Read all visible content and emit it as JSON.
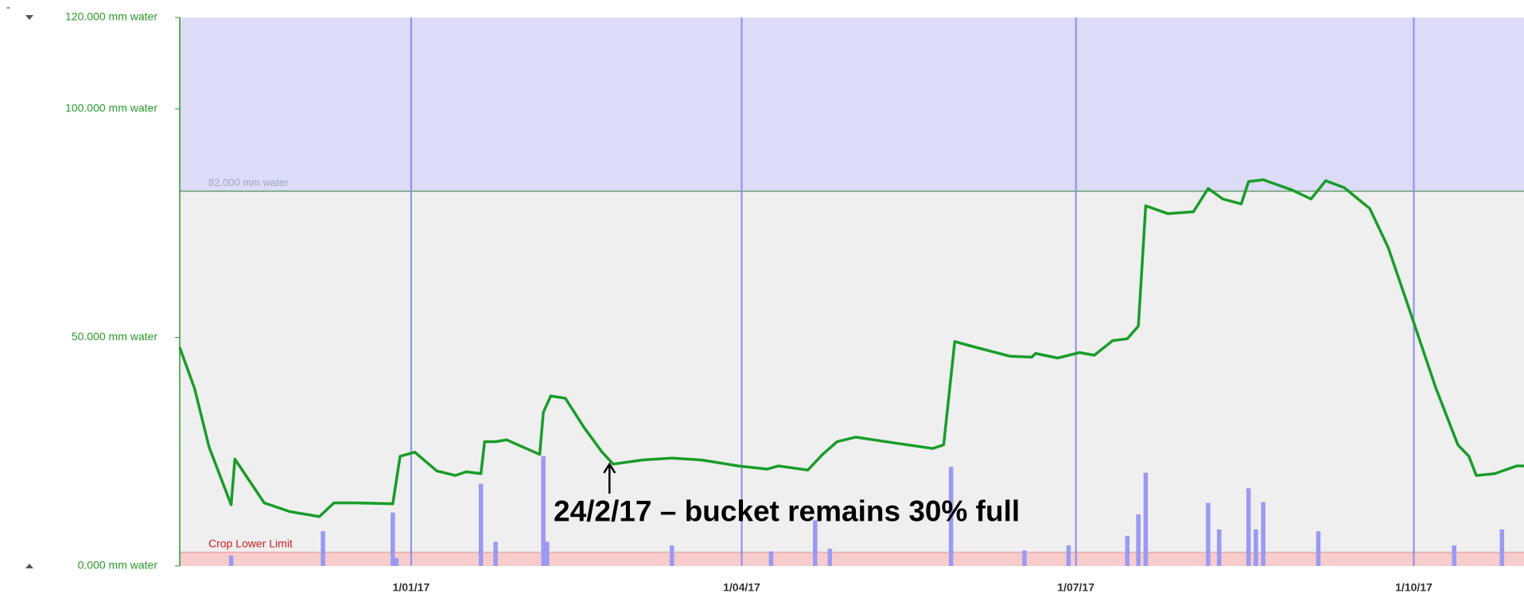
{
  "chart_data": {
    "type": "line",
    "x_type": "date",
    "xlim": [
      "2016-10-30",
      "2017-10-31"
    ],
    "xticks": [
      {
        "value": "2017-01-01",
        "label": "1/01/17"
      },
      {
        "value": "2017-04-01",
        "label": "1/04/17"
      },
      {
        "value": "2017-07-01",
        "label": "1/07/17"
      },
      {
        "value": "2017-10-01",
        "label": "1/10/17"
      }
    ],
    "ylim": [
      0,
      120
    ],
    "yticks": [
      {
        "value": 0,
        "label": "0.000 mm water"
      },
      {
        "value": 50,
        "label": "50.000 mm water"
      },
      {
        "value": 100,
        "label": "100.000 mm water"
      },
      {
        "value": 120,
        "label": "120.000 mm water"
      }
    ],
    "full_point": {
      "value": 82,
      "label": "82.000 mm water"
    },
    "lower_limit": {
      "value": 3,
      "label": "Crop Lower Limit"
    },
    "annotation": {
      "text": "24/2/17 – bucket remains 30% full",
      "x": "2017-02-24",
      "y": 22.8
    },
    "series": [
      {
        "type": "bar",
        "color": "#9a9af2",
        "x": [
          "2016-11-13",
          "2016-12-08",
          "2016-12-27",
          "2016-12-28",
          "2017-01-20",
          "2017-01-24",
          "2017-02-06",
          "2017-02-07",
          "2017-03-13",
          "2017-04-09",
          "2017-04-21",
          "2017-04-25",
          "2017-05-28",
          "2017-06-17",
          "2017-06-29",
          "2017-07-15",
          "2017-07-18",
          "2017-07-20",
          "2017-08-06",
          "2017-08-09",
          "2017-08-17",
          "2017-08-19",
          "2017-08-21",
          "2017-09-05",
          "2017-10-12",
          "2017-10-25"
        ],
        "values": [
          2.3,
          7.6,
          11.7,
          1.7,
          18,
          5.3,
          24,
          5.3,
          4.5,
          3.2,
          10,
          3.8,
          21.7,
          3.4,
          4.5,
          6.6,
          11.3,
          20.4,
          13.8,
          8,
          17,
          8,
          14,
          7.6,
          4.5,
          8
        ]
      },
      {
        "type": "line",
        "color": "#1a9c2a",
        "x": [
          "2016-10-30",
          "2016-11-03",
          "2016-11-07",
          "2016-11-13",
          "2016-11-14",
          "2016-11-17",
          "2016-11-22",
          "2016-11-29",
          "2016-12-07",
          "2016-12-11",
          "2016-12-17",
          "2016-12-27",
          "2016-12-29",
          "2017-01-02",
          "2017-01-08",
          "2017-01-13",
          "2017-01-16",
          "2017-01-20",
          "2017-01-21",
          "2017-01-24",
          "2017-01-27",
          "2017-02-05",
          "2017-02-06",
          "2017-02-08",
          "2017-02-12",
          "2017-02-17",
          "2017-02-22",
          "2017-02-25",
          "2017-03-05",
          "2017-03-13",
          "2017-03-21",
          "2017-03-31",
          "2017-04-08",
          "2017-04-11",
          "2017-04-19",
          "2017-04-23",
          "2017-04-27",
          "2017-05-02",
          "2017-05-12",
          "2017-05-23",
          "2017-05-26",
          "2017-05-29",
          "2017-06-03",
          "2017-06-13",
          "2017-06-19",
          "2017-06-20",
          "2017-06-26",
          "2017-07-02",
          "2017-07-06",
          "2017-07-11",
          "2017-07-15",
          "2017-07-18",
          "2017-07-20",
          "2017-07-26",
          "2017-08-02",
          "2017-08-06",
          "2017-08-10",
          "2017-08-15",
          "2017-08-17",
          "2017-08-21",
          "2017-08-29",
          "2017-09-03",
          "2017-09-07",
          "2017-09-12",
          "2017-09-19",
          "2017-09-24",
          "2017-09-29",
          "2017-10-07",
          "2017-10-13",
          "2017-10-16",
          "2017-10-18",
          "2017-10-23",
          "2017-10-29",
          "2017-10-31"
        ],
        "values": [
          47.8,
          38.9,
          26,
          13.4,
          23.4,
          19.8,
          13.8,
          11.9,
          10.8,
          13.8,
          13.8,
          13.6,
          24,
          24.9,
          20.8,
          19.8,
          20.6,
          20.2,
          27.2,
          27.2,
          27.6,
          24.4,
          33.6,
          37.2,
          36.7,
          30.4,
          24.9,
          22.3,
          23.2,
          23.6,
          23.2,
          21.9,
          21.2,
          21.9,
          21,
          24.4,
          27.2,
          28.2,
          27,
          25.7,
          26.5,
          49.1,
          48,
          45.9,
          45.7,
          46.5,
          45.5,
          46.7,
          46.1,
          49.3,
          49.7,
          52.5,
          78.8,
          77.1,
          77.5,
          82.6,
          80.3,
          79.2,
          84.1,
          84.5,
          82.2,
          80.3,
          84.3,
          82.8,
          78.2,
          69.7,
          58,
          38.9,
          26.5,
          24,
          19.8,
          20.2,
          21.9,
          21.9
        ]
      }
    ]
  }
}
